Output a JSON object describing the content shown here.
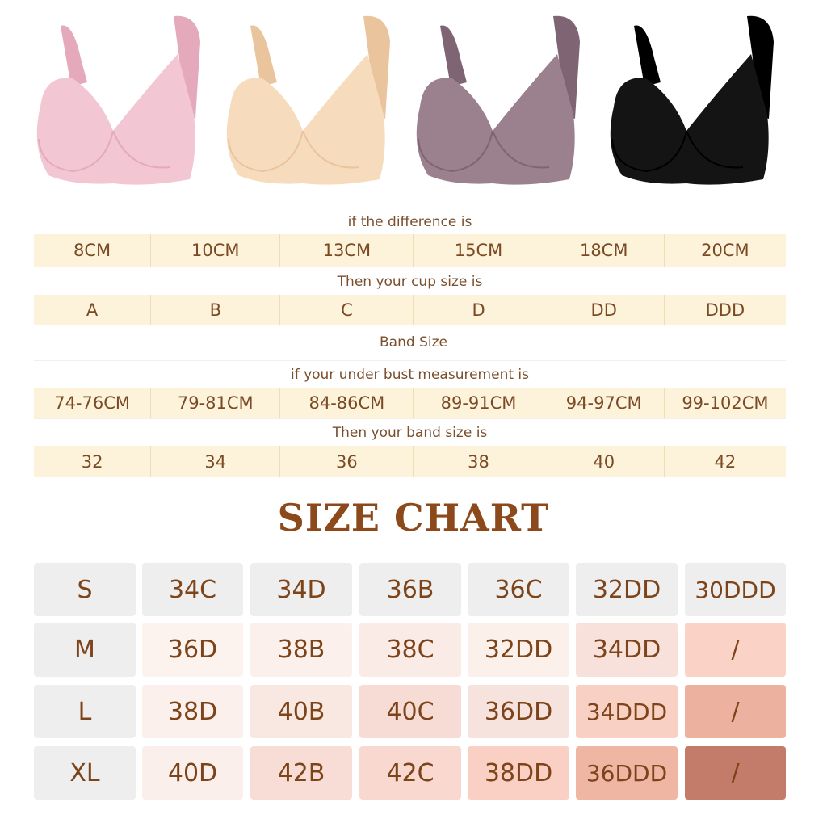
{
  "products": [
    {
      "color_name": "pink",
      "color": "#f2c6d2",
      "shade": "#e4aabb"
    },
    {
      "color_name": "beige",
      "color": "#f6dcbd",
      "shade": "#e9c49d"
    },
    {
      "color_name": "mauve",
      "color": "#9b808e",
      "shade": "#7f6574"
    },
    {
      "color_name": "black",
      "color": "#141414",
      "shade": "#000000"
    }
  ],
  "cup_table": {
    "difference_label": "if the difference is",
    "differences": [
      "8CM",
      "10CM",
      "13CM",
      "15CM",
      "18CM",
      "20CM"
    ],
    "cup_label": "Then your cup size is",
    "cups": [
      "A",
      "B",
      "C",
      "D",
      "DD",
      "DDD"
    ]
  },
  "band_section_title": "Band Size",
  "band_table": {
    "under_bust_label": "if your under bust measurement is",
    "measurements": [
      "74-76CM",
      "79-81CM",
      "84-86CM",
      "89-91CM",
      "94-97CM",
      "99-102CM"
    ],
    "band_label": "Then your band size is",
    "bands": [
      "32",
      "34",
      "36",
      "38",
      "40",
      "42"
    ]
  },
  "size_chart": {
    "title": "SIZE CHART",
    "rows": [
      {
        "size": "S",
        "values": [
          "34C",
          "34D",
          "36B",
          "36C",
          "32DD",
          "30DDD"
        ],
        "colors": [
          "#eeeeef",
          "#eeeeef",
          "#eeeeef",
          "#eeeeef",
          "#eeeeef",
          "#eeeeef"
        ]
      },
      {
        "size": "M",
        "values": [
          "36D",
          "38B",
          "38C",
          "32DD",
          "34DD",
          "/"
        ],
        "colors": [
          "#fcf3ef",
          "#fbf0ec",
          "#faebe7",
          "#fcf0eb",
          "#f8e0db",
          "#fbd2c6"
        ]
      },
      {
        "size": "L",
        "values": [
          "38D",
          "40B",
          "40C",
          "36DD",
          "34DDD",
          "/"
        ],
        "colors": [
          "#fbf0ec",
          "#f9e7e2",
          "#f6dcd5",
          "#f7e3dd",
          "#f9d0c4",
          "#edb29f"
        ]
      },
      {
        "size": "XL",
        "values": [
          "40D",
          "42B",
          "42C",
          "38DD",
          "36DDD",
          "/"
        ],
        "colors": [
          "#fbefeb",
          "#f7ddd6",
          "#f8d8cf",
          "#fbd0c4",
          "#eeb6a3",
          "#c47c6a"
        ]
      }
    ],
    "size_cell_color": "#eeeeef"
  }
}
